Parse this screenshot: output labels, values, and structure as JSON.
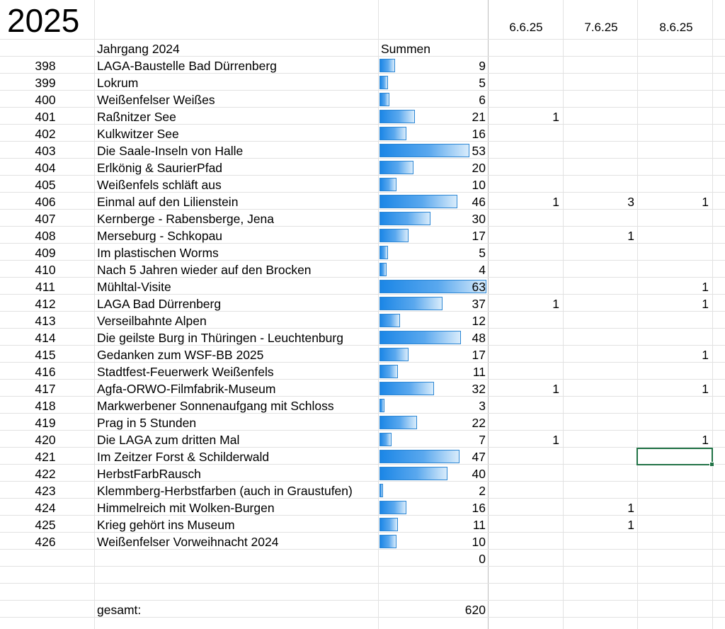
{
  "sheet": {
    "year_title": "2025",
    "section_header": "Jahrgang 2024",
    "sum_header": "Summen",
    "date_headers": [
      "6.6.25",
      "7.6.25",
      "8.6.25"
    ],
    "empty_row_sum": "0",
    "total_label": "gesamt:",
    "total_value": "620",
    "bar_max": 63,
    "bar_color": "#1b86e6",
    "selection_color": "#217346",
    "rows": [
      {
        "nr": "398",
        "title": "LAGA-Baustelle Bad Dürrenberg",
        "sum": 9,
        "d1": "",
        "d2": "",
        "d3": ""
      },
      {
        "nr": "399",
        "title": "Lokrum",
        "sum": 5,
        "d1": "",
        "d2": "",
        "d3": ""
      },
      {
        "nr": "400",
        "title": "Weißenfelser Weißes",
        "sum": 6,
        "d1": "",
        "d2": "",
        "d3": ""
      },
      {
        "nr": "401",
        "title": "Raßnitzer See",
        "sum": 21,
        "d1": "1",
        "d2": "",
        "d3": ""
      },
      {
        "nr": "402",
        "title": "Kulkwitzer See",
        "sum": 16,
        "d1": "",
        "d2": "",
        "d3": ""
      },
      {
        "nr": "403",
        "title": "Die Saale-Inseln von Halle",
        "sum": 53,
        "d1": "",
        "d2": "",
        "d3": ""
      },
      {
        "nr": "404",
        "title": "Erlkönig & SaurierPfad",
        "sum": 20,
        "d1": "",
        "d2": "",
        "d3": ""
      },
      {
        "nr": "405",
        "title": "Weißenfels schläft aus",
        "sum": 10,
        "d1": "",
        "d2": "",
        "d3": ""
      },
      {
        "nr": "406",
        "title": "Einmal auf den Lilienstein",
        "sum": 46,
        "d1": "1",
        "d2": "3",
        "d3": "1"
      },
      {
        "nr": "407",
        "title": "Kernberge - Rabensberge, Jena",
        "sum": 30,
        "d1": "",
        "d2": "",
        "d3": ""
      },
      {
        "nr": "408",
        "title": "Merseburg - Schkopau",
        "sum": 17,
        "d1": "",
        "d2": "1",
        "d3": ""
      },
      {
        "nr": "409",
        "title": "Im plastischen Worms",
        "sum": 5,
        "d1": "",
        "d2": "",
        "d3": ""
      },
      {
        "nr": "410",
        "title": "Nach 5 Jahren wieder auf den Brocken",
        "sum": 4,
        "d1": "",
        "d2": "",
        "d3": ""
      },
      {
        "nr": "411",
        "title": "Mühltal-Visite",
        "sum": 63,
        "d1": "",
        "d2": "",
        "d3": "1"
      },
      {
        "nr": "412",
        "title": "LAGA Bad Dürrenberg",
        "sum": 37,
        "d1": "1",
        "d2": "",
        "d3": "1"
      },
      {
        "nr": "413",
        "title": "Verseilbahnte Alpen",
        "sum": 12,
        "d1": "",
        "d2": "",
        "d3": ""
      },
      {
        "nr": "414",
        "title": "Die geilste Burg in Thüringen - Leuchtenburg",
        "sum": 48,
        "d1": "",
        "d2": "",
        "d3": ""
      },
      {
        "nr": "415",
        "title": "Gedanken zum WSF-BB 2025",
        "sum": 17,
        "d1": "",
        "d2": "",
        "d3": "1"
      },
      {
        "nr": "416",
        "title": "Stadtfest-Feuerwerk Weißenfels",
        "sum": 11,
        "d1": "",
        "d2": "",
        "d3": ""
      },
      {
        "nr": "417",
        "title": "Agfa-ORWO-Filmfabrik-Museum",
        "sum": 32,
        "d1": "1",
        "d2": "",
        "d3": "1"
      },
      {
        "nr": "418",
        "title": "Markwerbener Sonnenaufgang mit Schloss",
        "sum": 3,
        "d1": "",
        "d2": "",
        "d3": ""
      },
      {
        "nr": "419",
        "title": "Prag in 5 Stunden",
        "sum": 22,
        "d1": "",
        "d2": "",
        "d3": ""
      },
      {
        "nr": "420",
        "title": "Die LAGA zum dritten Mal",
        "sum": 7,
        "d1": "1",
        "d2": "",
        "d3": "1"
      },
      {
        "nr": "421",
        "title": "Im Zeitzer Forst & Schilderwald",
        "sum": 47,
        "d1": "",
        "d2": "",
        "d3": ""
      },
      {
        "nr": "422",
        "title": "HerbstFarbRausch",
        "sum": 40,
        "d1": "",
        "d2": "",
        "d3": ""
      },
      {
        "nr": "423",
        "title": "Klemmberg-Herbstfarben (auch in Graustufen)",
        "sum": 2,
        "d1": "",
        "d2": "",
        "d3": ""
      },
      {
        "nr": "424",
        "title": "Himmelreich mit Wolken-Burgen",
        "sum": 16,
        "d1": "",
        "d2": "1",
        "d3": ""
      },
      {
        "nr": "425",
        "title": "Krieg gehört ins Museum",
        "sum": 11,
        "d1": "",
        "d2": "1",
        "d3": ""
      },
      {
        "nr": "426",
        "title": "Weißenfelser Vorweihnacht 2024",
        "sum": 10,
        "d1": "",
        "d2": "",
        "d3": ""
      }
    ]
  }
}
